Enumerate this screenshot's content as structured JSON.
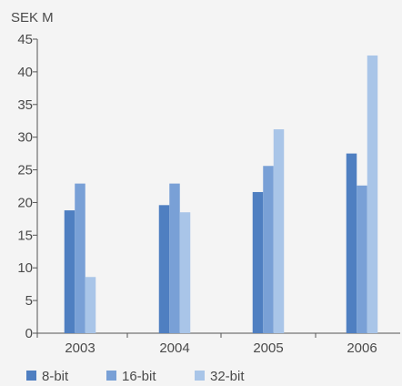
{
  "chart_data": {
    "type": "bar",
    "title": "",
    "ylabel": "SEK M",
    "xlabel": "",
    "ylim": [
      0,
      45
    ],
    "yticks": [
      0,
      5,
      10,
      15,
      20,
      25,
      30,
      35,
      40,
      45
    ],
    "grid": false,
    "legend_position": "bottom-left",
    "categories": [
      "2003",
      "2004",
      "2005",
      "2006"
    ],
    "series": [
      {
        "name": "8-bit",
        "color": "#4f7fc1",
        "values": [
          18.8,
          19.6,
          21.6,
          27.5
        ]
      },
      {
        "name": "16-bit",
        "color": "#79a0d6",
        "values": [
          22.9,
          22.9,
          25.6,
          22.6
        ]
      },
      {
        "name": "32-bit",
        "color": "#a9c5e8",
        "values": [
          8.6,
          18.5,
          31.2,
          42.5
        ]
      }
    ]
  }
}
